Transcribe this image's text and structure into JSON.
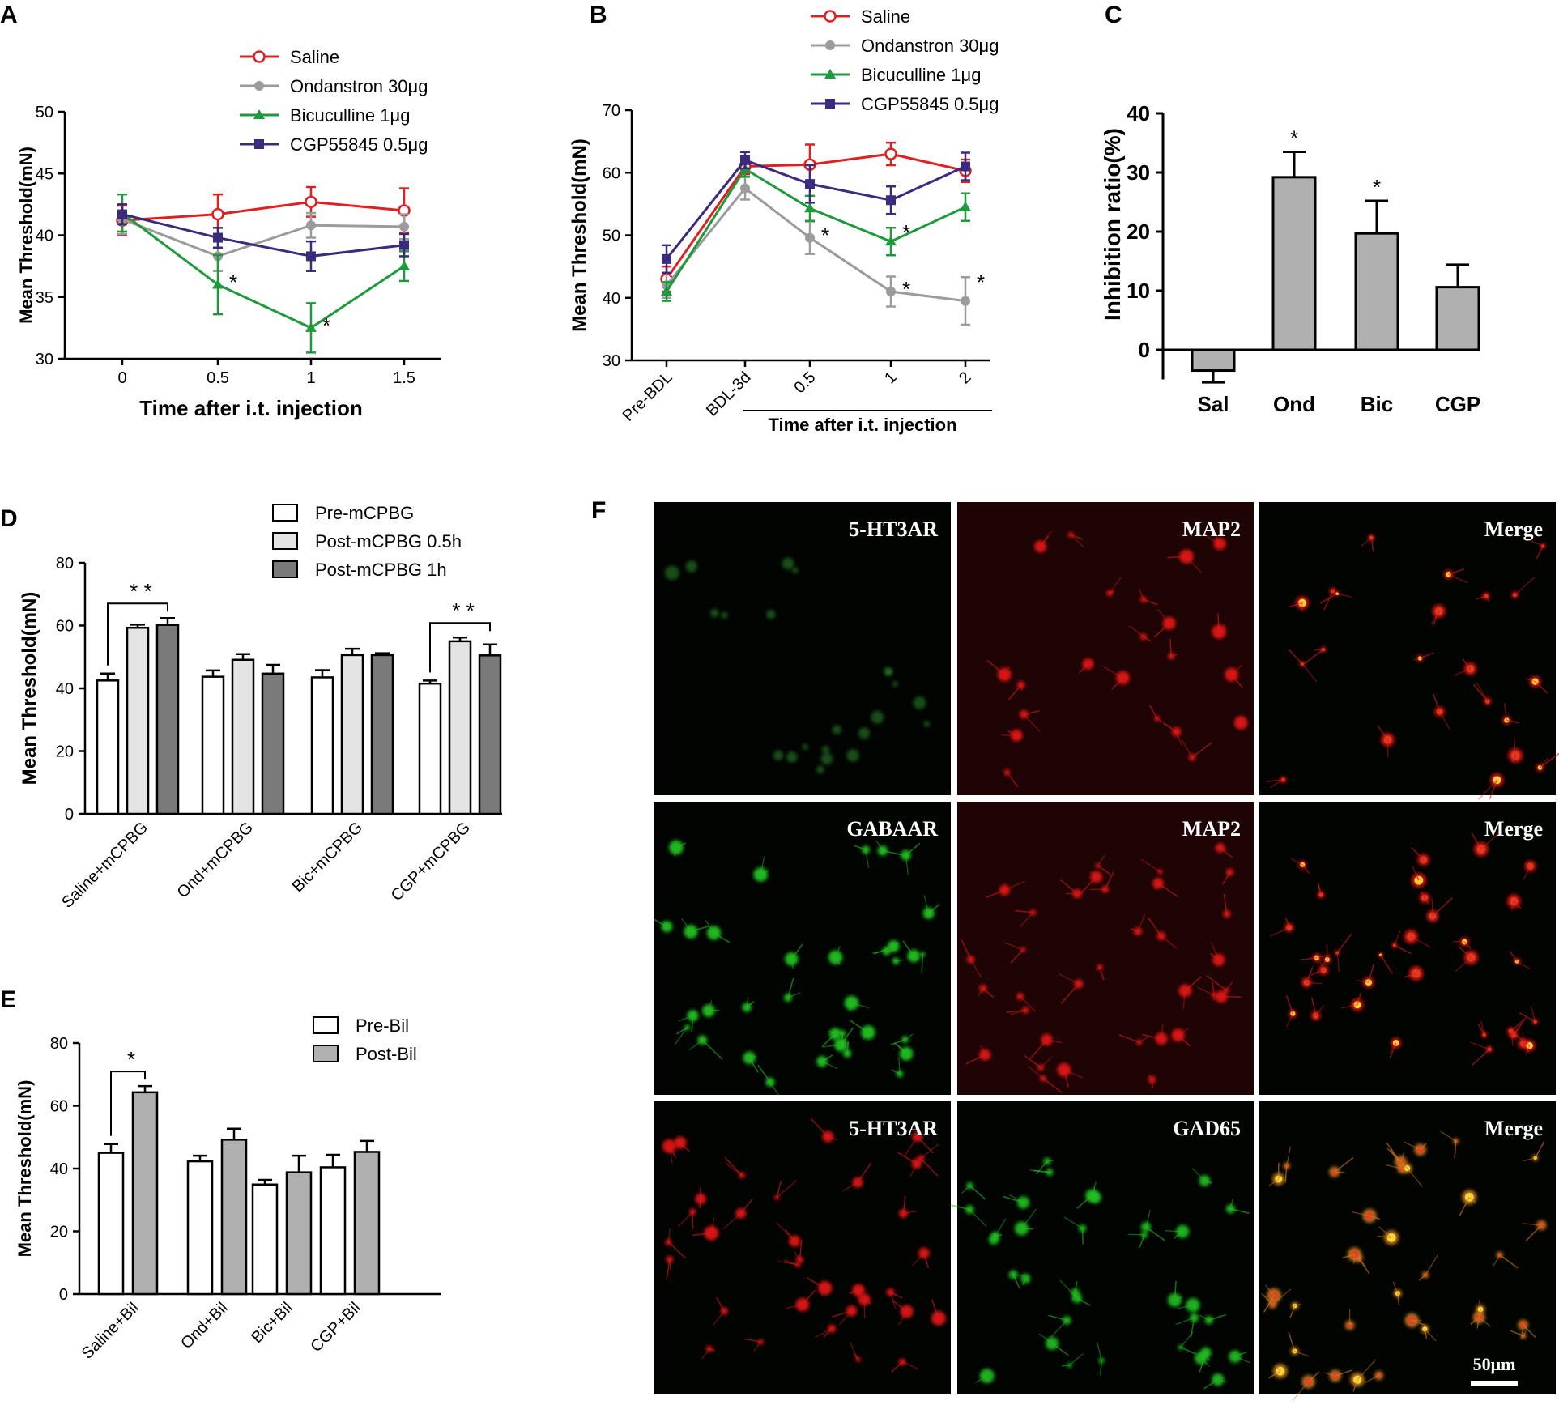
{
  "panel_labels": {
    "A": "A",
    "B": "B",
    "C": "C",
    "D": "D",
    "E": "E",
    "F": "F"
  },
  "colors": {
    "saline": "#e02020",
    "ond": "#9b9b9b",
    "bic": "#1e9a3c",
    "cgp": "#3b2a7e",
    "bar_gray": "#b0b0b0",
    "bar_light": "#e4e4e4",
    "bar_dark": "#7a7a7a"
  },
  "chart_data": [
    {
      "id": "A",
      "type": "line",
      "xlabel": "Time after i.t. injection",
      "ylabel": "Mean Threshold(mN)",
      "x": [
        0,
        0.5,
        1,
        1.5
      ],
      "x_tick_labels": [
        "0",
        "0.5",
        "1",
        "1.5"
      ],
      "ylim": [
        30,
        50
      ],
      "y_ticks": [
        "30",
        "35",
        "40",
        "45",
        "50"
      ],
      "series": [
        {
          "name": "Saline",
          "values": [
            41.2,
            41.7,
            42.7,
            42.0
          ],
          "errors": [
            1.2,
            1.6,
            1.2,
            1.8
          ]
        },
        {
          "name": "Ondanstron 30μg",
          "values": [
            41.3,
            38.3,
            40.8,
            40.7
          ],
          "errors": [
            1.2,
            1.2,
            1.0,
            1.0
          ]
        },
        {
          "name": "Bicuculline 1μg",
          "values": [
            41.8,
            36.0,
            32.5,
            37.5
          ],
          "errors": [
            1.5,
            2.4,
            2.0,
            1.2
          ]
        },
        {
          "name": "CGP55845 0.5μg",
          "values": [
            41.7,
            39.8,
            38.3,
            39.2
          ],
          "errors": [
            0.8,
            0.8,
            1.2,
            0.9
          ]
        }
      ],
      "annotations": [
        {
          "series": 2,
          "point": 1,
          "text": "*"
        },
        {
          "series": 2,
          "point": 2,
          "text": "*"
        }
      ]
    },
    {
      "id": "B",
      "type": "line",
      "xlabel": "Time after i.t. injection",
      "ylabel": "Mean Threshold(mN)",
      "x_tick_labels": [
        "Pre-BDL",
        "BDL-3d",
        "0.5",
        "1",
        "2"
      ],
      "ylim": [
        30,
        70
      ],
      "y_ticks": [
        "30",
        "40",
        "50",
        "60",
        "70"
      ],
      "series": [
        {
          "name": "Saline",
          "values": [
            43.0,
            61.0,
            61.3,
            63.0,
            60.3
          ],
          "errors": [
            2.0,
            1.2,
            3.2,
            1.8,
            1.8
          ]
        },
        {
          "name": "Ondanstron 30μg",
          "values": [
            42.0,
            57.5,
            49.6,
            41.0,
            39.5
          ],
          "errors": [
            2.0,
            1.8,
            2.6,
            2.4,
            3.8
          ]
        },
        {
          "name": "Bicuculline 1μg",
          "values": [
            41.0,
            60.6,
            54.3,
            49.0,
            54.5
          ],
          "errors": [
            1.5,
            1.2,
            2.0,
            2.2,
            2.2
          ]
        },
        {
          "name": "CGP55845 0.5μg",
          "values": [
            46.2,
            62.0,
            58.2,
            55.6,
            61.0
          ],
          "errors": [
            2.2,
            1.3,
            3.0,
            2.2,
            2.2
          ]
        }
      ],
      "annotations": [
        {
          "series": 1,
          "point": 2,
          "text": "*"
        },
        {
          "series": 1,
          "point": 3,
          "text": "*"
        },
        {
          "series": 1,
          "point": 4,
          "text": "*"
        },
        {
          "series": 2,
          "point": 3,
          "text": "*"
        }
      ]
    },
    {
      "id": "C",
      "type": "bar",
      "ylabel": "Inhibition ratio(%)",
      "categories": [
        "Sal",
        "Ond",
        "Bic",
        "CGP"
      ],
      "values": [
        -3.5,
        29.2,
        19.7,
        10.6
      ],
      "errors": [
        2.0,
        4.3,
        5.5,
        3.8
      ],
      "ylim": [
        -5,
        40
      ],
      "y_ticks": [
        "0",
        "10",
        "20",
        "30",
        "40"
      ],
      "significant": [
        "",
        "*",
        "*",
        ""
      ]
    },
    {
      "id": "D",
      "type": "bar",
      "ylabel": "Mean Threshold(mN)",
      "categories": [
        "Saline+mCPBG",
        "Ond+mCPBG",
        "Bic+mCPBG",
        "CGP+mCPBG"
      ],
      "series": [
        {
          "name": "Pre-mCPBG",
          "values": [
            42.5,
            43.7,
            43.5,
            41.5
          ],
          "errors": [
            2.2,
            2.0,
            2.3,
            1.0
          ]
        },
        {
          "name": "Post-mCPBG 0.5h",
          "values": [
            59.3,
            49.1,
            50.6,
            55.0
          ],
          "errors": [
            1.0,
            1.8,
            2.0,
            1.2
          ]
        },
        {
          "name": "Post-mCPBG 1h",
          "values": [
            60.2,
            44.7,
            50.6,
            50.5
          ],
          "errors": [
            2.2,
            2.8,
            0.6,
            3.5
          ]
        }
      ],
      "ylim": [
        0,
        80
      ],
      "y_ticks": [
        "0",
        "20",
        "40",
        "60",
        "80"
      ],
      "brackets": [
        {
          "group": 0,
          "text": "* *"
        },
        {
          "group": 3,
          "text": "* *"
        }
      ]
    },
    {
      "id": "E",
      "type": "bar",
      "ylabel": "Mean Threshold(mN)",
      "categories": [
        "Saline+Bil",
        "Ond+Bil",
        "Bic+Bil",
        "CGP+Bil"
      ],
      "series": [
        {
          "name": "Pre-Bil",
          "values": [
            45.0,
            42.3,
            34.9,
            40.4
          ],
          "errors": [
            2.8,
            1.8,
            1.5,
            4.0
          ]
        },
        {
          "name": "Post-Bil",
          "values": [
            64.3,
            49.2,
            38.8,
            45.3
          ],
          "errors": [
            2.0,
            3.5,
            5.3,
            3.5
          ]
        }
      ],
      "ylim": [
        0,
        80
      ],
      "y_ticks": [
        "0",
        "20",
        "40",
        "60",
        "80"
      ],
      "brackets": [
        {
          "group": 0,
          "text": "*"
        }
      ]
    }
  ],
  "micrographs": {
    "rows": [
      {
        "labels": [
          "5-HT3AR",
          "MAP2",
          "Merge"
        ]
      },
      {
        "labels": [
          "GABAAR",
          "MAP2",
          "Merge"
        ]
      },
      {
        "labels": [
          "5-HT3AR",
          "GAD65",
          "Merge"
        ]
      }
    ],
    "scale_bar": "50μm"
  }
}
